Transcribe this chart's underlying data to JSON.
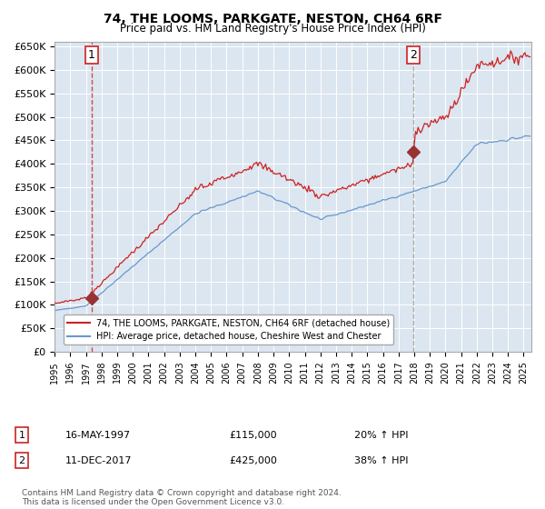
{
  "title1": "74, THE LOOMS, PARKGATE, NESTON, CH64 6RF",
  "title2": "Price paid vs. HM Land Registry's House Price Index (HPI)",
  "ylabel": "",
  "background_color": "#dce6f0",
  "plot_bg_color": "#dce6f0",
  "hpi_color": "#6699cc",
  "price_color": "#cc2222",
  "marker_color": "#993333",
  "sale1_date_num": 1997.37,
  "sale1_price": 115000,
  "sale2_date_num": 2017.94,
  "sale2_price": 425000,
  "ylim": [
    0,
    660000
  ],
  "xlim_start": 1995.0,
  "xlim_end": 2025.5,
  "yticks": [
    0,
    50000,
    100000,
    150000,
    200000,
    250000,
    300000,
    350000,
    400000,
    450000,
    500000,
    550000,
    600000,
    650000
  ],
  "xticks": [
    1995,
    1996,
    1997,
    1998,
    1999,
    2000,
    2001,
    2002,
    2003,
    2004,
    2005,
    2006,
    2007,
    2008,
    2009,
    2010,
    2011,
    2012,
    2013,
    2014,
    2015,
    2016,
    2017,
    2018,
    2019,
    2020,
    2021,
    2022,
    2023,
    2024,
    2025
  ],
  "legend_label_red": "74, THE LOOMS, PARKGATE, NESTON, CH64 6RF (detached house)",
  "legend_label_blue": "HPI: Average price, detached house, Cheshire West and Chester",
  "note1_num": "1",
  "note1_date": "16-MAY-1997",
  "note1_price": "£115,000",
  "note1_hpi": "20% ↑ HPI",
  "note2_num": "2",
  "note2_date": "11-DEC-2017",
  "note2_price": "£425,000",
  "note2_hpi": "38% ↑ HPI",
  "copyright": "Contains HM Land Registry data © Crown copyright and database right 2024.\nThis data is licensed under the Open Government Licence v3.0."
}
